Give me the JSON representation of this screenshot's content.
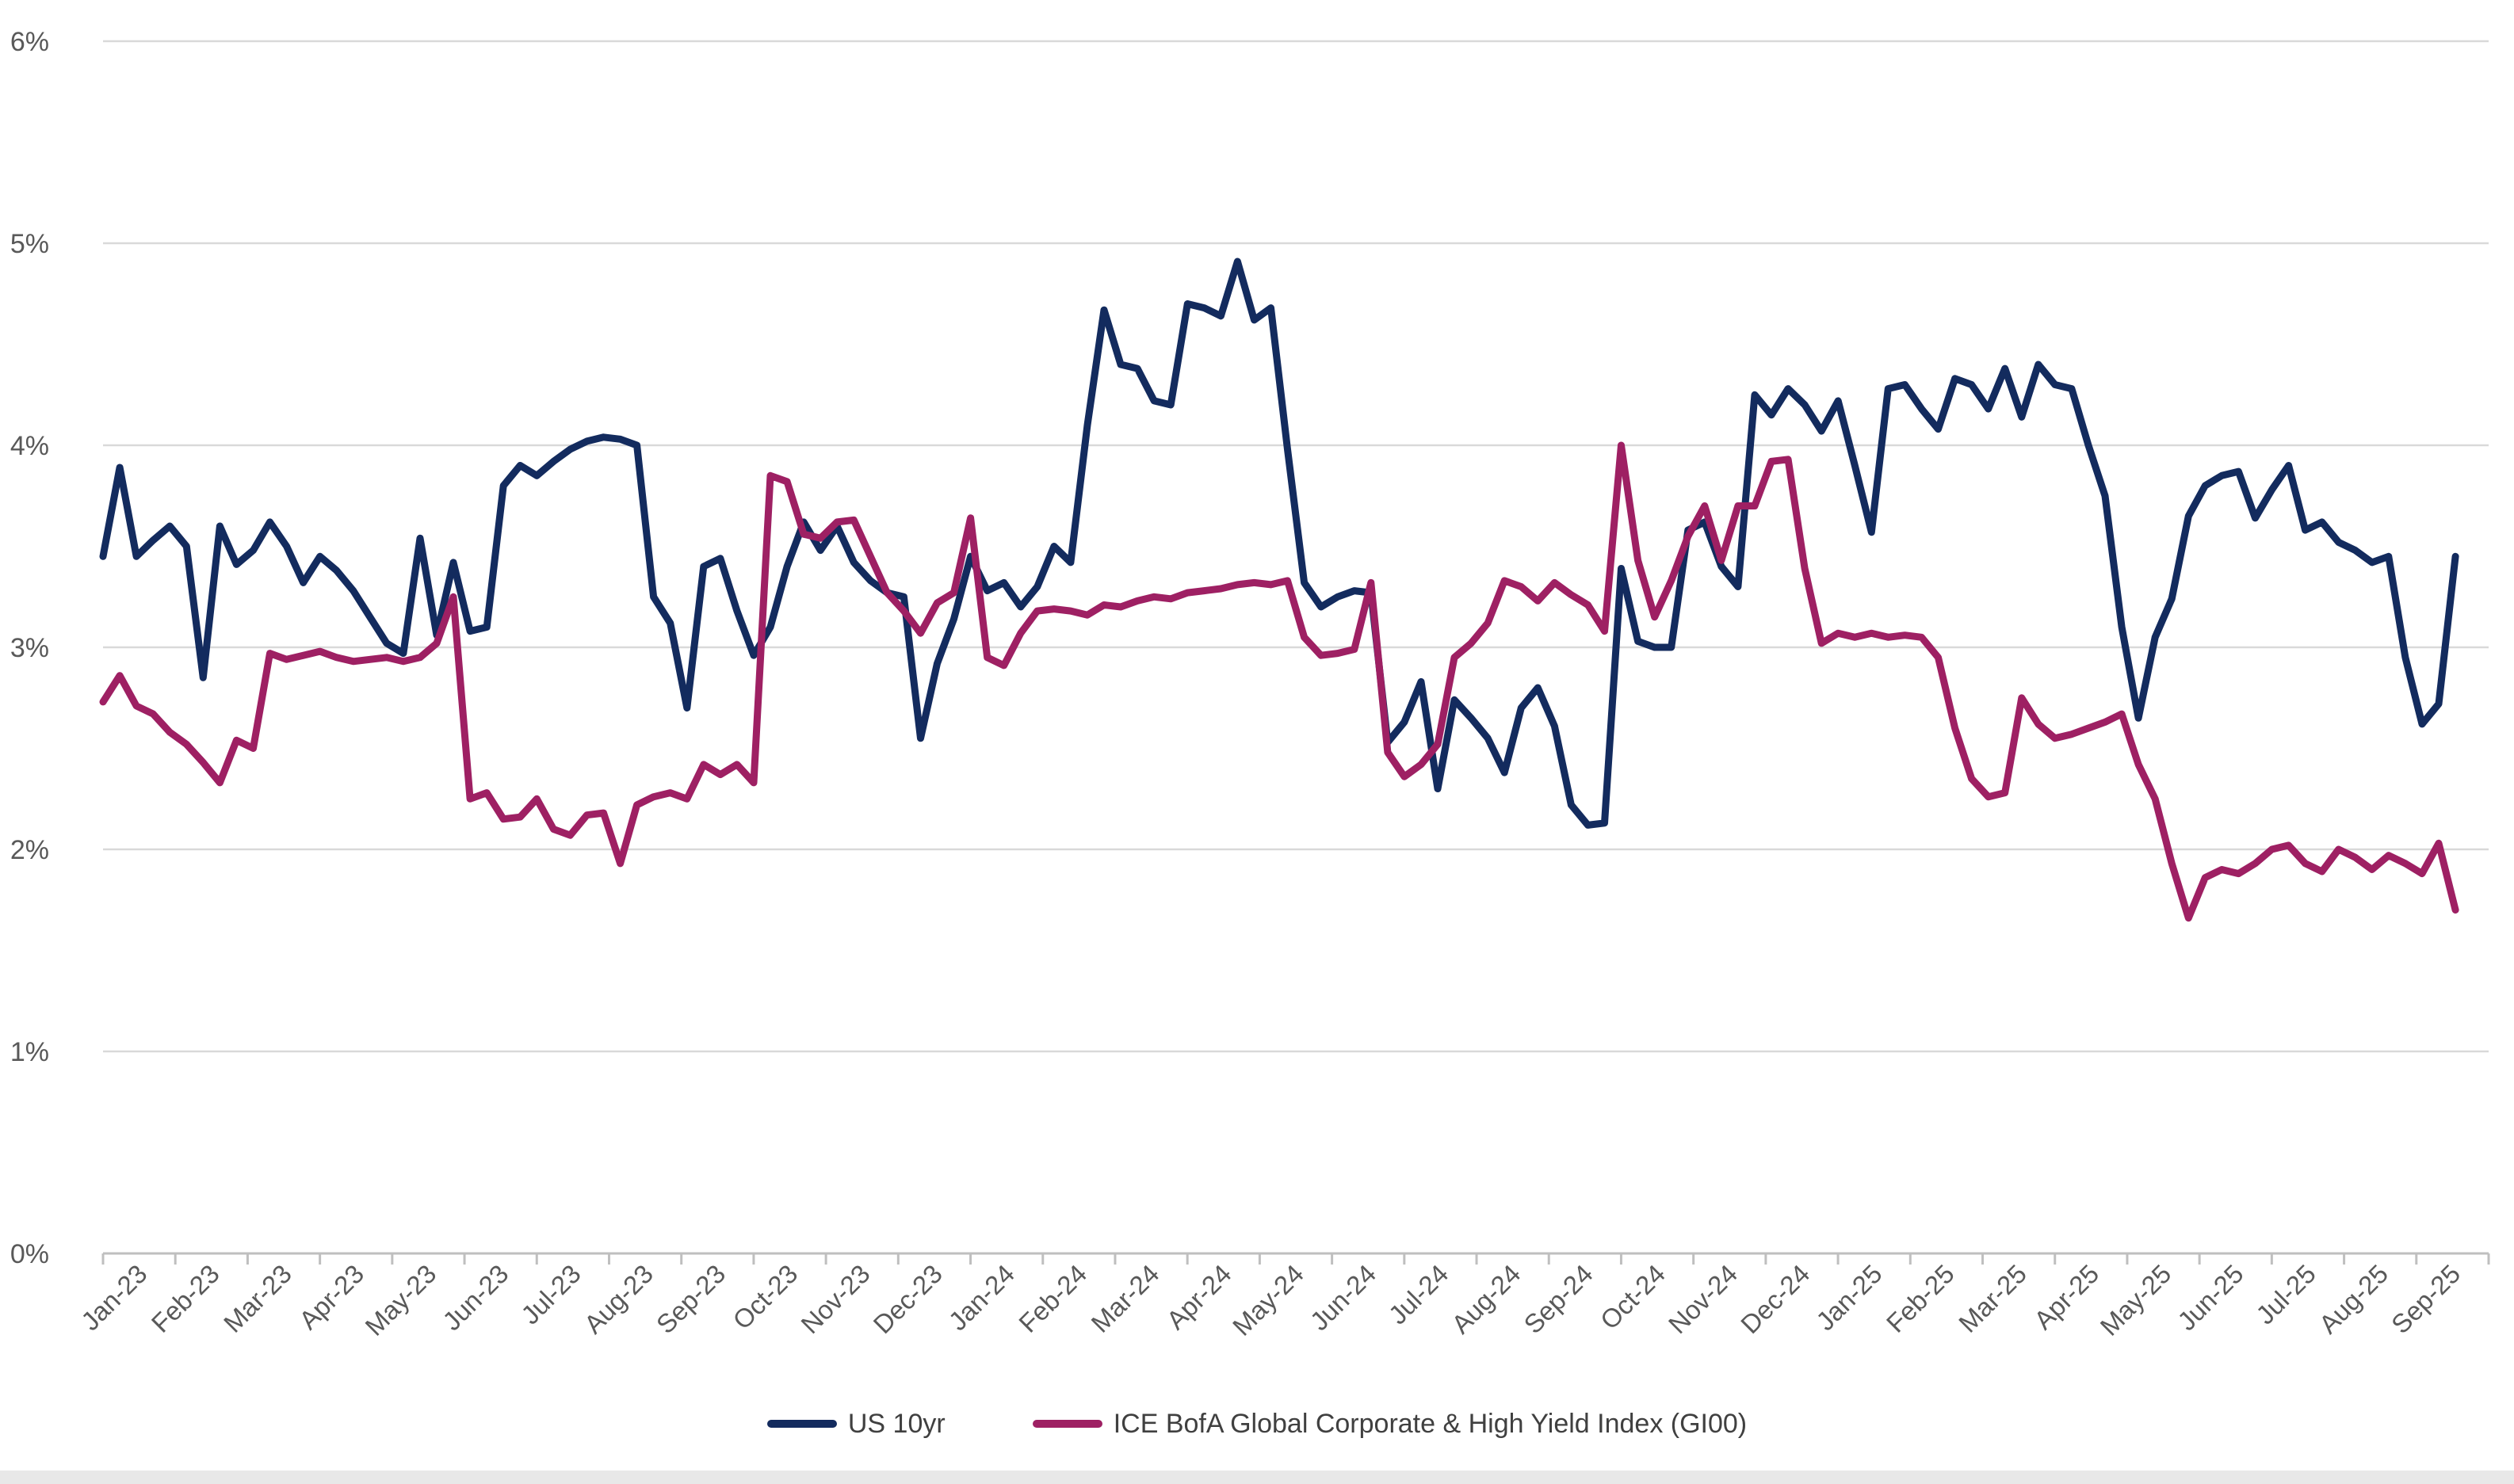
{
  "chart_data": {
    "type": "line",
    "title": "",
    "xlabel": "",
    "ylabel": "",
    "grid": "horizontal",
    "legend_position": "bottom",
    "y_axis": {
      "min": 0,
      "max": 6,
      "step": 1,
      "tick_labels": [
        "0%",
        "1%",
        "2%",
        "3%",
        "4%",
        "5%",
        "6%"
      ]
    },
    "categories": [
      "Jan-23",
      "Feb-23",
      "Mar-23",
      "Apr-23",
      "May-23",
      "Jun-23",
      "Jul-23",
      "Aug-23",
      "Sep-23",
      "Oct-23",
      "Nov-23",
      "Dec-23",
      "Jan-24",
      "Feb-24",
      "Mar-24",
      "Apr-24",
      "May-24",
      "Jun-24",
      "Jul-24",
      "Aug-24",
      "Sep-24",
      "Oct-24",
      "Nov-24",
      "Dec-24",
      "Jan-25",
      "Feb-25",
      "Mar-25",
      "Apr-25",
      "May-25",
      "Jun-25",
      "Jul-25",
      "Aug-25",
      "Sep-25"
    ],
    "points_per_series": 142,
    "series": [
      {
        "name": "US 10yr",
        "color": "#132B5E",
        "values": [
          3.45,
          3.89,
          3.45,
          3.53,
          3.6,
          3.5,
          2.85,
          3.6,
          3.41,
          3.48,
          3.62,
          3.5,
          3.32,
          3.45,
          3.38,
          3.28,
          3.15,
          3.02,
          2.97,
          3.54,
          3.06,
          3.42,
          3.08,
          3.1,
          3.8,
          3.9,
          3.85,
          3.92,
          3.98,
          4.02,
          4.04,
          4.03,
          4.0,
          3.25,
          3.12,
          2.7,
          3.4,
          3.44,
          3.18,
          2.96,
          3.1,
          3.4,
          3.62,
          3.48,
          3.6,
          3.42,
          3.33,
          3.27,
          3.25,
          2.55,
          2.92,
          3.14,
          3.45,
          3.28,
          3.32,
          3.2,
          3.3,
          3.5,
          3.42,
          4.1,
          4.67,
          4.4,
          4.38,
          4.22,
          4.2,
          4.7,
          4.68,
          4.64,
          4.91,
          4.62,
          4.68,
          3.98,
          3.32,
          3.2,
          3.25,
          3.28,
          3.27,
          2.53,
          2.63,
          2.83,
          2.3,
          2.74,
          2.65,
          2.55,
          2.38,
          2.7,
          2.8,
          2.61,
          2.22,
          2.12,
          2.13,
          3.39,
          3.03,
          3.0,
          3.0,
          3.58,
          3.62,
          3.4,
          3.3,
          4.25,
          4.15,
          4.28,
          4.2,
          4.07,
          4.22,
          3.9,
          3.57,
          4.28,
          4.3,
          4.18,
          4.08,
          4.33,
          4.3,
          4.18,
          4.38,
          4.14,
          4.4,
          4.3,
          4.28,
          4.0,
          3.75,
          3.1,
          2.65,
          3.05,
          3.24,
          3.65,
          3.8,
          3.85,
          3.87,
          3.64,
          3.78,
          3.9,
          3.58,
          3.62,
          3.52,
          3.48,
          3.42,
          3.45,
          2.95,
          2.62,
          2.72,
          3.45
        ]
      },
      {
        "name": "ICE BofA Global Corporate & High Yield Index (GI00)",
        "color": "#9E2063",
        "values": [
          2.73,
          2.86,
          2.71,
          2.67,
          2.58,
          2.52,
          2.43,
          2.33,
          2.54,
          2.5,
          2.97,
          2.94,
          2.96,
          2.98,
          2.95,
          2.93,
          2.94,
          2.95,
          2.93,
          2.95,
          3.02,
          3.25,
          2.25,
          2.28,
          2.15,
          2.16,
          2.25,
          2.1,
          2.07,
          2.17,
          2.18,
          1.93,
          2.22,
          2.26,
          2.28,
          2.25,
          2.42,
          2.37,
          2.42,
          2.33,
          3.85,
          3.82,
          3.56,
          3.54,
          3.62,
          3.63,
          3.45,
          3.27,
          3.18,
          3.07,
          3.22,
          3.27,
          3.64,
          2.95,
          2.91,
          3.07,
          3.18,
          3.19,
          3.18,
          3.16,
          3.21,
          3.2,
          3.23,
          3.25,
          3.24,
          3.27,
          3.28,
          3.29,
          3.31,
          3.32,
          3.31,
          3.33,
          3.05,
          2.96,
          2.97,
          2.99,
          3.32,
          2.48,
          2.36,
          2.42,
          2.52,
          2.95,
          3.02,
          3.12,
          3.33,
          3.3,
          3.23,
          3.32,
          3.26,
          3.21,
          3.08,
          4.0,
          3.43,
          3.15,
          3.33,
          3.55,
          3.7,
          3.43,
          3.7,
          3.7,
          3.92,
          3.93,
          3.39,
          3.02,
          3.07,
          3.05,
          3.07,
          3.05,
          3.06,
          3.05,
          2.95,
          2.6,
          2.35,
          2.26,
          2.28,
          2.75,
          2.62,
          2.55,
          2.57,
          2.6,
          2.63,
          2.67,
          2.42,
          2.25,
          1.93,
          1.66,
          1.86,
          1.9,
          1.88,
          1.93,
          2.0,
          2.02,
          1.93,
          1.89,
          2.0,
          1.96,
          1.9,
          1.97,
          1.93,
          1.88,
          2.03,
          1.7
        ]
      }
    ],
    "colors": {
      "gridline": "#d9d9d9",
      "axis_line": "#bfbfbf",
      "tick_label": "#595959",
      "legend_text": "#404040",
      "background": "#ffffff"
    }
  }
}
